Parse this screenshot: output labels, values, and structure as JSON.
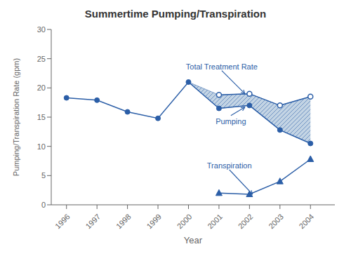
{
  "chart_data": {
    "type": "line",
    "title": "Summertime Pumping/Transpiration",
    "xlabel": "Year",
    "ylabel": "Pumping/Transpiration Rate (gpm)",
    "xlim": [
      1995.5,
      2004.8
    ],
    "ylim": [
      0,
      30
    ],
    "xticks": [
      1996,
      1997,
      1998,
      1999,
      2000,
      2001,
      2002,
      2003,
      2004
    ],
    "yticks": [
      0,
      5,
      10,
      15,
      20,
      25,
      30
    ],
    "grid": false,
    "color": "#2B5EA7",
    "series": [
      {
        "type": "area",
        "x": [
          2000,
          2001,
          2002,
          2003,
          2004
        ],
        "values": [
          [
            21.0,
            21.0
          ],
          [
            16.5,
            18.8
          ],
          [
            17.0,
            19.0
          ],
          [
            12.8,
            17.0
          ],
          [
            10.5,
            18.5
          ]
        ],
        "color": "#b8ccdf"
      },
      {
        "type": "line",
        "x": [
          1996,
          1997,
          1998,
          1999,
          2000,
          2001,
          2002,
          2003,
          2004
        ],
        "values": [
          18.3,
          17.9,
          15.9,
          14.8,
          21.0,
          16.5,
          17.0,
          12.8,
          10.5
        ],
        "marker": "circle"
      },
      {
        "type": "line",
        "x": [
          2001,
          2002,
          2003,
          2004
        ],
        "values": [
          18.8,
          19.0,
          17.0,
          18.5
        ],
        "marker": "open_circle"
      },
      {
        "type": "line",
        "x": [
          2001,
          2002,
          2003,
          2004
        ],
        "values": [
          2.0,
          1.8,
          4.0,
          7.8
        ],
        "marker": "triangle"
      }
    ],
    "annotations": [
      {
        "text": "Total Treatment Rate",
        "x": 2001.85,
        "y": 19.0
      },
      {
        "text": "Pumping",
        "x": 2001.85,
        "y": 16.7
      },
      {
        "text": "Transpiration",
        "x": 2002.1,
        "y": 1.8
      }
    ]
  }
}
